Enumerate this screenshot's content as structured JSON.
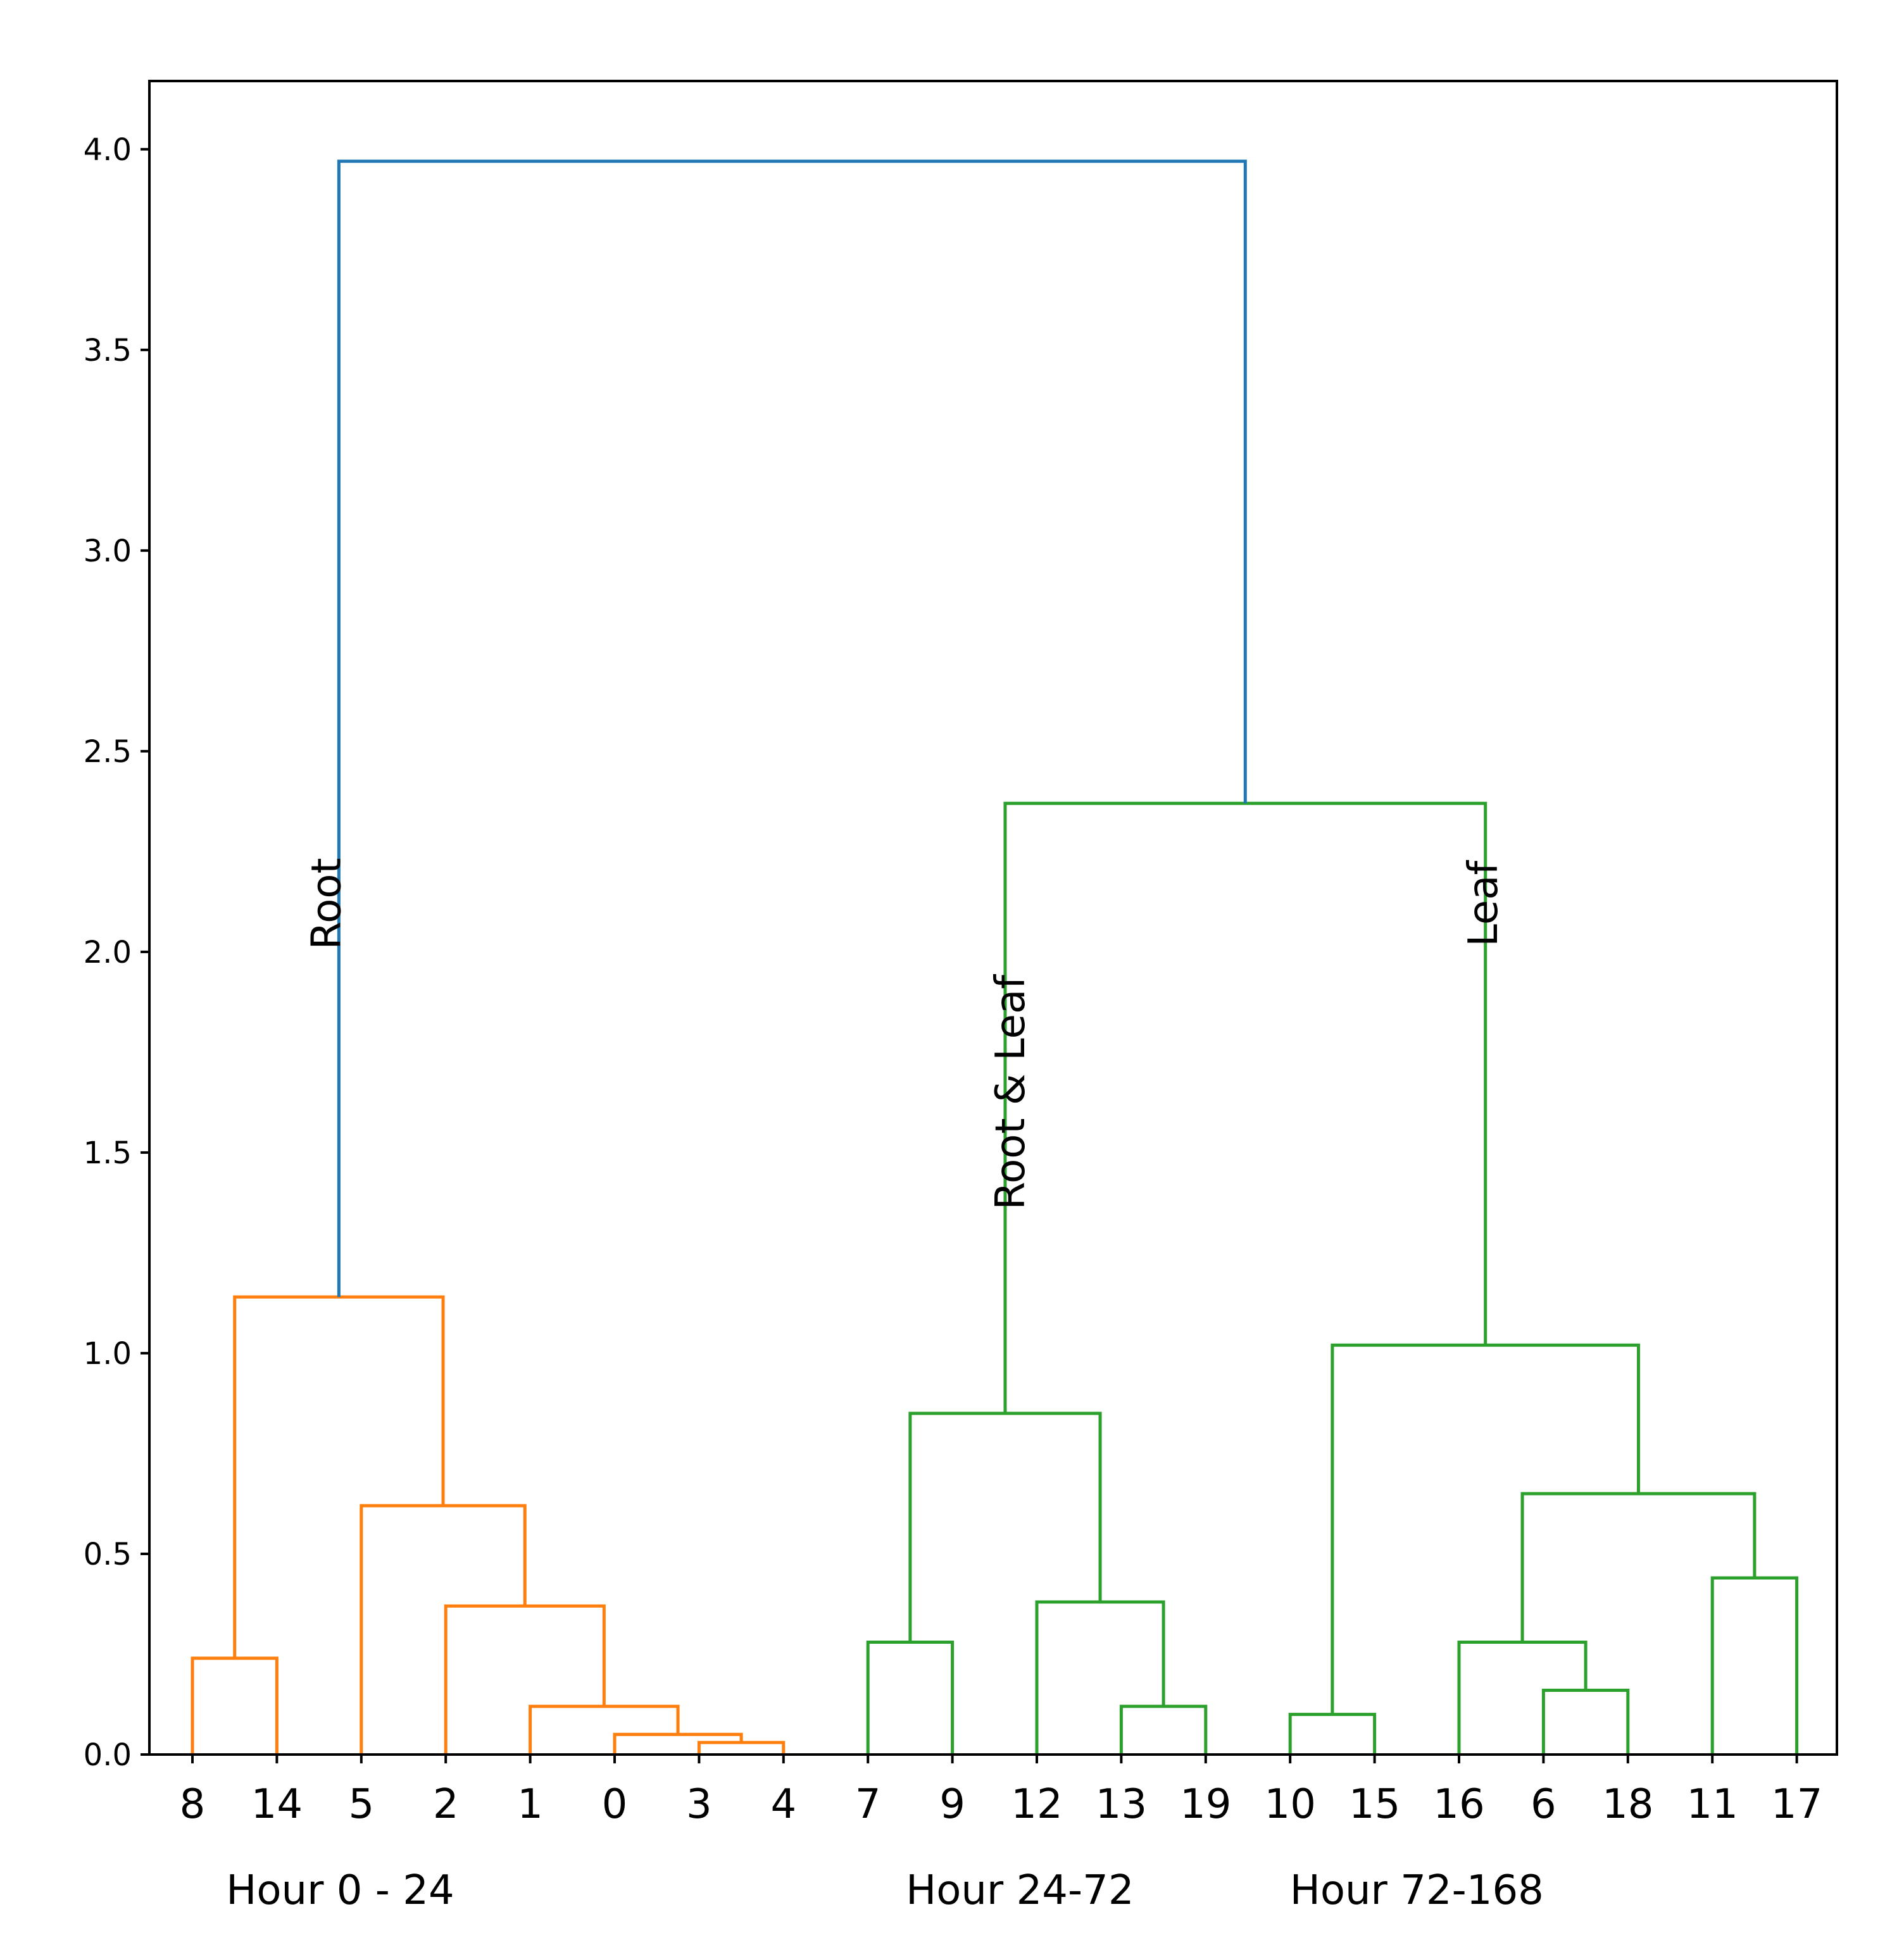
{
  "chart_data": {
    "type": "dendrogram",
    "title": "",
    "xlabel": "",
    "ylabel": "",
    "ylim": [
      0,
      4.17
    ],
    "yticks": [
      0.0,
      0.5,
      1.0,
      1.5,
      2.0,
      2.5,
      3.0,
      3.5,
      4.0
    ],
    "ytick_labels": [
      "0.0",
      "0.5",
      "1.0",
      "1.5",
      "2.0",
      "2.5",
      "3.0",
      "3.5",
      "4.0"
    ],
    "leaf_order": [
      "8",
      "14",
      "5",
      "2",
      "1",
      "0",
      "3",
      "4",
      "7",
      "9",
      "12",
      "13",
      "19",
      "10",
      "15",
      "16",
      "6",
      "18",
      "11",
      "17"
    ],
    "colors": {
      "root_link": "#1f77b4",
      "cluster_1": "#ff7f0e",
      "cluster_2": "#2ca02c",
      "axis": "#000000"
    },
    "merges": [
      {
        "id": "a",
        "left": "leaf:3",
        "right": "leaf:4",
        "height": 0.03,
        "color": "cluster_1"
      },
      {
        "id": "b",
        "left": "leaf:0",
        "right": "node:a",
        "height": 0.05,
        "color": "cluster_1"
      },
      {
        "id": "c",
        "left": "leaf:1",
        "right": "node:b",
        "height": 0.12,
        "color": "cluster_1"
      },
      {
        "id": "d",
        "left": "leaf:2",
        "right": "node:c",
        "height": 0.37,
        "color": "cluster_1"
      },
      {
        "id": "e",
        "left": "leaf:5",
        "right": "node:d",
        "height": 0.62,
        "color": "cluster_1"
      },
      {
        "id": "f",
        "left": "leaf:8",
        "right": "leaf:14",
        "height": 0.24,
        "color": "cluster_1"
      },
      {
        "id": "g",
        "left": "node:f",
        "right": "node:e",
        "height": 1.14,
        "color": "cluster_1"
      },
      {
        "id": "h",
        "left": "leaf:7",
        "right": "leaf:9",
        "height": 0.28,
        "color": "cluster_2"
      },
      {
        "id": "i",
        "left": "leaf:13",
        "right": "leaf:19",
        "height": 0.12,
        "color": "cluster_2"
      },
      {
        "id": "j",
        "left": "leaf:12",
        "right": "node:i",
        "height": 0.38,
        "color": "cluster_2"
      },
      {
        "id": "k",
        "left": "node:h",
        "right": "node:j",
        "height": 0.85,
        "color": "cluster_2"
      },
      {
        "id": "l",
        "left": "leaf:10",
        "right": "leaf:15",
        "height": 0.1,
        "color": "cluster_2"
      },
      {
        "id": "m",
        "left": "leaf:6",
        "right": "leaf:18",
        "height": 0.16,
        "color": "cluster_2"
      },
      {
        "id": "n",
        "left": "leaf:16",
        "right": "node:m",
        "height": 0.28,
        "color": "cluster_2"
      },
      {
        "id": "o",
        "left": "leaf:11",
        "right": "leaf:17",
        "height": 0.44,
        "color": "cluster_2"
      },
      {
        "id": "p",
        "left": "node:n",
        "right": "node:o",
        "height": 0.65,
        "color": "cluster_2"
      },
      {
        "id": "q",
        "left": "node:l",
        "right": "node:p",
        "height": 1.02,
        "color": "cluster_2"
      },
      {
        "id": "r",
        "left": "node:k",
        "right": "node:q",
        "height": 2.37,
        "color": "cluster_2"
      },
      {
        "id": "s",
        "left": "node:g",
        "right": "node:r",
        "height": 3.97,
        "color": "root_link"
      }
    ],
    "cluster_labels": [
      {
        "text": "Root",
        "leaf_anchor": 1.75,
        "value": 2.12
      },
      {
        "text": "Root & Leaf",
        "leaf_anchor": 9.85,
        "value": 1.65
      },
      {
        "text": "Leaf",
        "leaf_anchor": 15.45,
        "value": 2.12
      }
    ],
    "group_labels": [
      {
        "text": "Hour 0 - 24",
        "leaf_anchor": 1.75
      },
      {
        "text": "Hour 24-72",
        "leaf_anchor": 9.8
      },
      {
        "text": "Hour 72-168",
        "leaf_anchor": 14.5
      }
    ]
  }
}
